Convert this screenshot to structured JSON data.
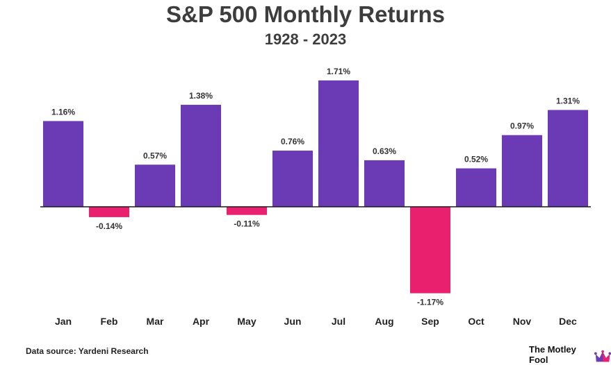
{
  "chart_data": {
    "type": "bar",
    "title": "S&P 500 Monthly Returns",
    "subtitle": "1928 - 2023",
    "categories": [
      "Jan",
      "Feb",
      "Mar",
      "Apr",
      "May",
      "Jun",
      "Jul",
      "Aug",
      "Sep",
      "Oct",
      "Nov",
      "Dec"
    ],
    "values": [
      1.16,
      -0.14,
      0.57,
      1.38,
      -0.11,
      0.76,
      1.71,
      0.63,
      -1.17,
      0.52,
      0.97,
      1.31
    ],
    "value_labels": [
      "1.16%",
      "-0.14%",
      "0.57%",
      "1.38%",
      "-0.11%",
      "0.76%",
      "1.71%",
      "0.63%",
      "-1.17%",
      "0.52%",
      "0.97%",
      "1.31%"
    ],
    "xlabel": "",
    "ylabel": "",
    "ylim": [
      -1.3,
      1.9
    ],
    "grid": false,
    "legend": "none",
    "colors": {
      "positive": "#6a3bb5",
      "negative": "#e8206e",
      "baseline": "#1a1a1a"
    }
  },
  "footer": {
    "source": "Data source: Yardeni Research",
    "brand": "The Motley Fool",
    "logo_icon": "jester-cap-icon"
  }
}
